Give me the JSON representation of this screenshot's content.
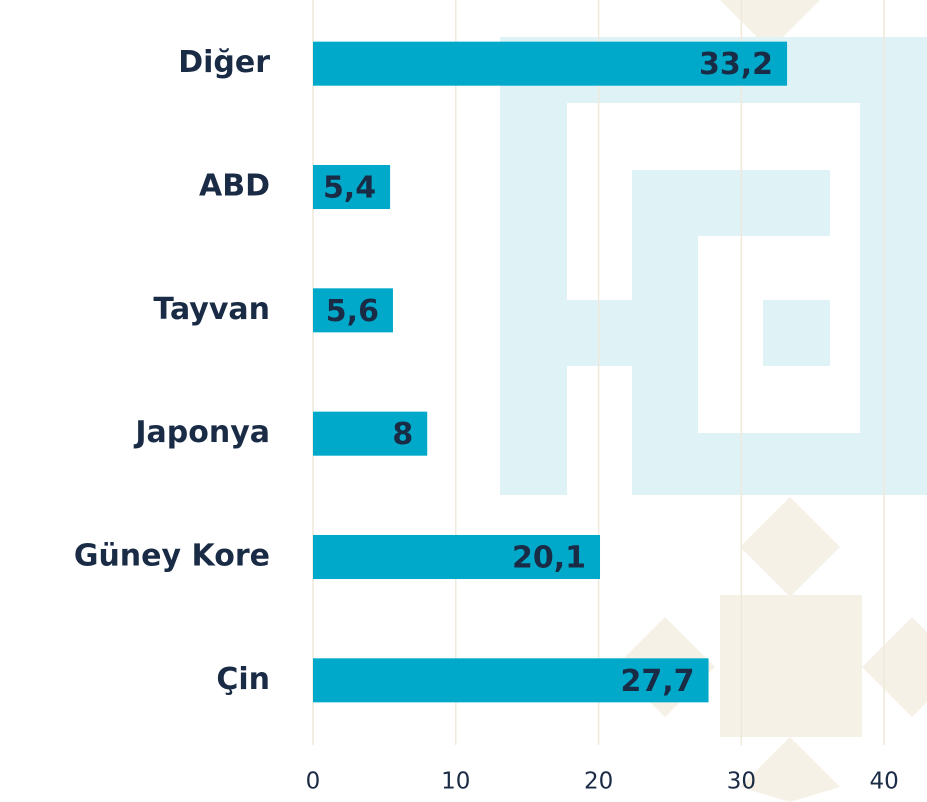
{
  "chart_data": {
    "type": "barh",
    "categories": [
      "Diğer",
      "ABD",
      "Tayvan",
      "Japonya",
      "Güney Kore",
      "Çin"
    ],
    "values": [
      33.2,
      5.4,
      5.6,
      8,
      20.1,
      27.7
    ],
    "value_labels": [
      "33,2",
      "5,4",
      "5,6",
      "8",
      "20,1",
      "27,7"
    ],
    "color": "#00a9c9",
    "xlim": [
      0,
      43
    ],
    "xticks": [
      0,
      10,
      20,
      30,
      40
    ],
    "grid": true
  }
}
